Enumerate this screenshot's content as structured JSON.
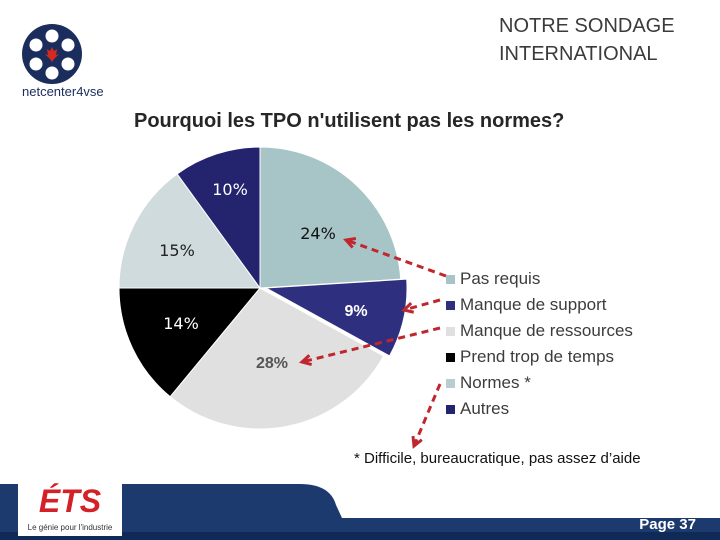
{
  "header": {
    "title_line1": "NOTRE SONDAGE",
    "title_line2": "INTERNATIONAL"
  },
  "logo": {
    "name": "netcenter4vse",
    "prefix": "netcenter",
    "suffix": "4vse"
  },
  "chart_data": {
    "type": "pie",
    "title": "Pourquoi les TPO n'utilisent pas les normes?",
    "categories": [
      "Pas requis",
      "Manque de support",
      "Manque de ressources",
      "Prend trop de temps",
      "Normes *",
      "Autres"
    ],
    "values": [
      24,
      9,
      28,
      14,
      15,
      10
    ],
    "labels": [
      "24%",
      "9%",
      "28%",
      "14%",
      "15%",
      "10%"
    ],
    "colors": [
      "#a7c4c7",
      "#2e2f7e",
      "#e0e0e0",
      "#000000",
      "#cfdbdc",
      "#23236e"
    ],
    "label_colors": [
      "#111111",
      "#ffffff",
      "#555555",
      "#ffffff",
      "#222222",
      "#ffffff"
    ],
    "legend_position": "right"
  },
  "footnote": "* Difficile, bureaucratique, pas assez d’aide",
  "footer": {
    "logo_name": "ÉTS",
    "tagline": "Le génie pour l'industrie",
    "page": "Page 37"
  },
  "colors": {
    "navy": "#1d3a6e",
    "arrow_red": "#c0262d"
  }
}
